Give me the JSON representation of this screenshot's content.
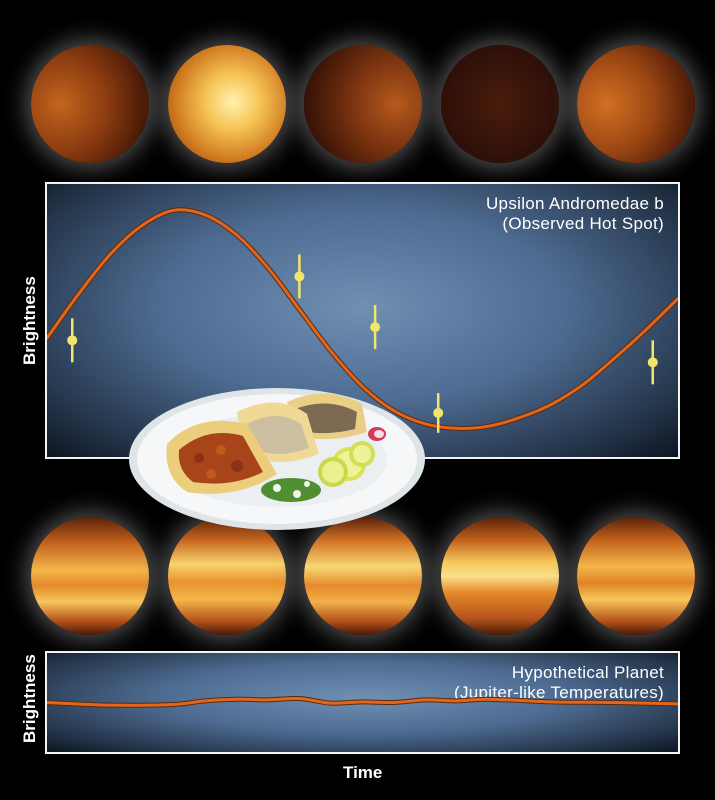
{
  "chart_data": [
    {
      "type": "line",
      "title": "Upsilon Andromedae b",
      "subtitle": "(Observed Hot Spot)",
      "ylabel": "Brightness",
      "xlabel": "",
      "line_color": "#e0661e",
      "point_color": "#f2e66a",
      "series": [
        {
          "x": [
            0,
            0.05,
            0.1,
            0.15,
            0.2,
            0.25,
            0.3,
            0.35,
            0.4,
            0.45,
            0.5,
            0.55,
            0.6,
            0.65,
            0.7,
            0.75,
            0.8,
            0.85,
            0.9,
            0.95,
            1.0
          ],
          "y": [
            0.42,
            0.62,
            0.8,
            0.93,
            1.0,
            0.98,
            0.89,
            0.74,
            0.55,
            0.36,
            0.2,
            0.09,
            0.03,
            0.01,
            0.02,
            0.06,
            0.12,
            0.21,
            0.33,
            0.46,
            0.6
          ]
        },
        {
          "x": [
            0.04,
            0.4,
            0.52,
            0.62,
            0.96
          ],
          "y": [
            0.41,
            0.7,
            0.47,
            0.08,
            0.31
          ],
          "err": [
            0.1,
            0.1,
            0.1,
            0.09,
            0.1
          ]
        }
      ],
      "ylim": [
        -0.12,
        1.12
      ],
      "xlim": [
        0,
        1
      ]
    },
    {
      "type": "line",
      "title": "Hypothetical Planet",
      "subtitle": "(Jupiter-like Temperatures)",
      "ylabel": "Brightness",
      "xlabel": "Time",
      "line_color": "#e0661e",
      "series": [
        {
          "x": [
            0,
            0.1,
            0.2,
            0.25,
            0.3,
            0.35,
            0.4,
            0.45,
            0.5,
            0.55,
            0.6,
            0.65,
            0.7,
            0.8,
            0.9,
            1.0
          ],
          "y": [
            0.5,
            0.42,
            0.44,
            0.55,
            0.6,
            0.58,
            0.62,
            0.48,
            0.52,
            0.5,
            0.58,
            0.55,
            0.6,
            0.52,
            0.5,
            0.46
          ]
        }
      ],
      "ylim": [
        -1,
        2
      ],
      "xlim": [
        0,
        1
      ]
    }
  ],
  "planets": {
    "top": [
      {
        "name": "planet-phase-1",
        "brightness": 0.45
      },
      {
        "name": "planet-phase-2",
        "brightness": 1.0
      },
      {
        "name": "planet-phase-3",
        "brightness": 0.35
      },
      {
        "name": "planet-phase-4",
        "brightness": 0.1
      },
      {
        "name": "planet-phase-5",
        "brightness": 0.5
      }
    ],
    "bottom": [
      {
        "name": "jupiter-like-1"
      },
      {
        "name": "jupiter-like-2"
      },
      {
        "name": "jupiter-like-3"
      },
      {
        "name": "jupiter-like-4"
      },
      {
        "name": "jupiter-like-5"
      }
    ]
  },
  "overlay_image": "tacos-plate"
}
